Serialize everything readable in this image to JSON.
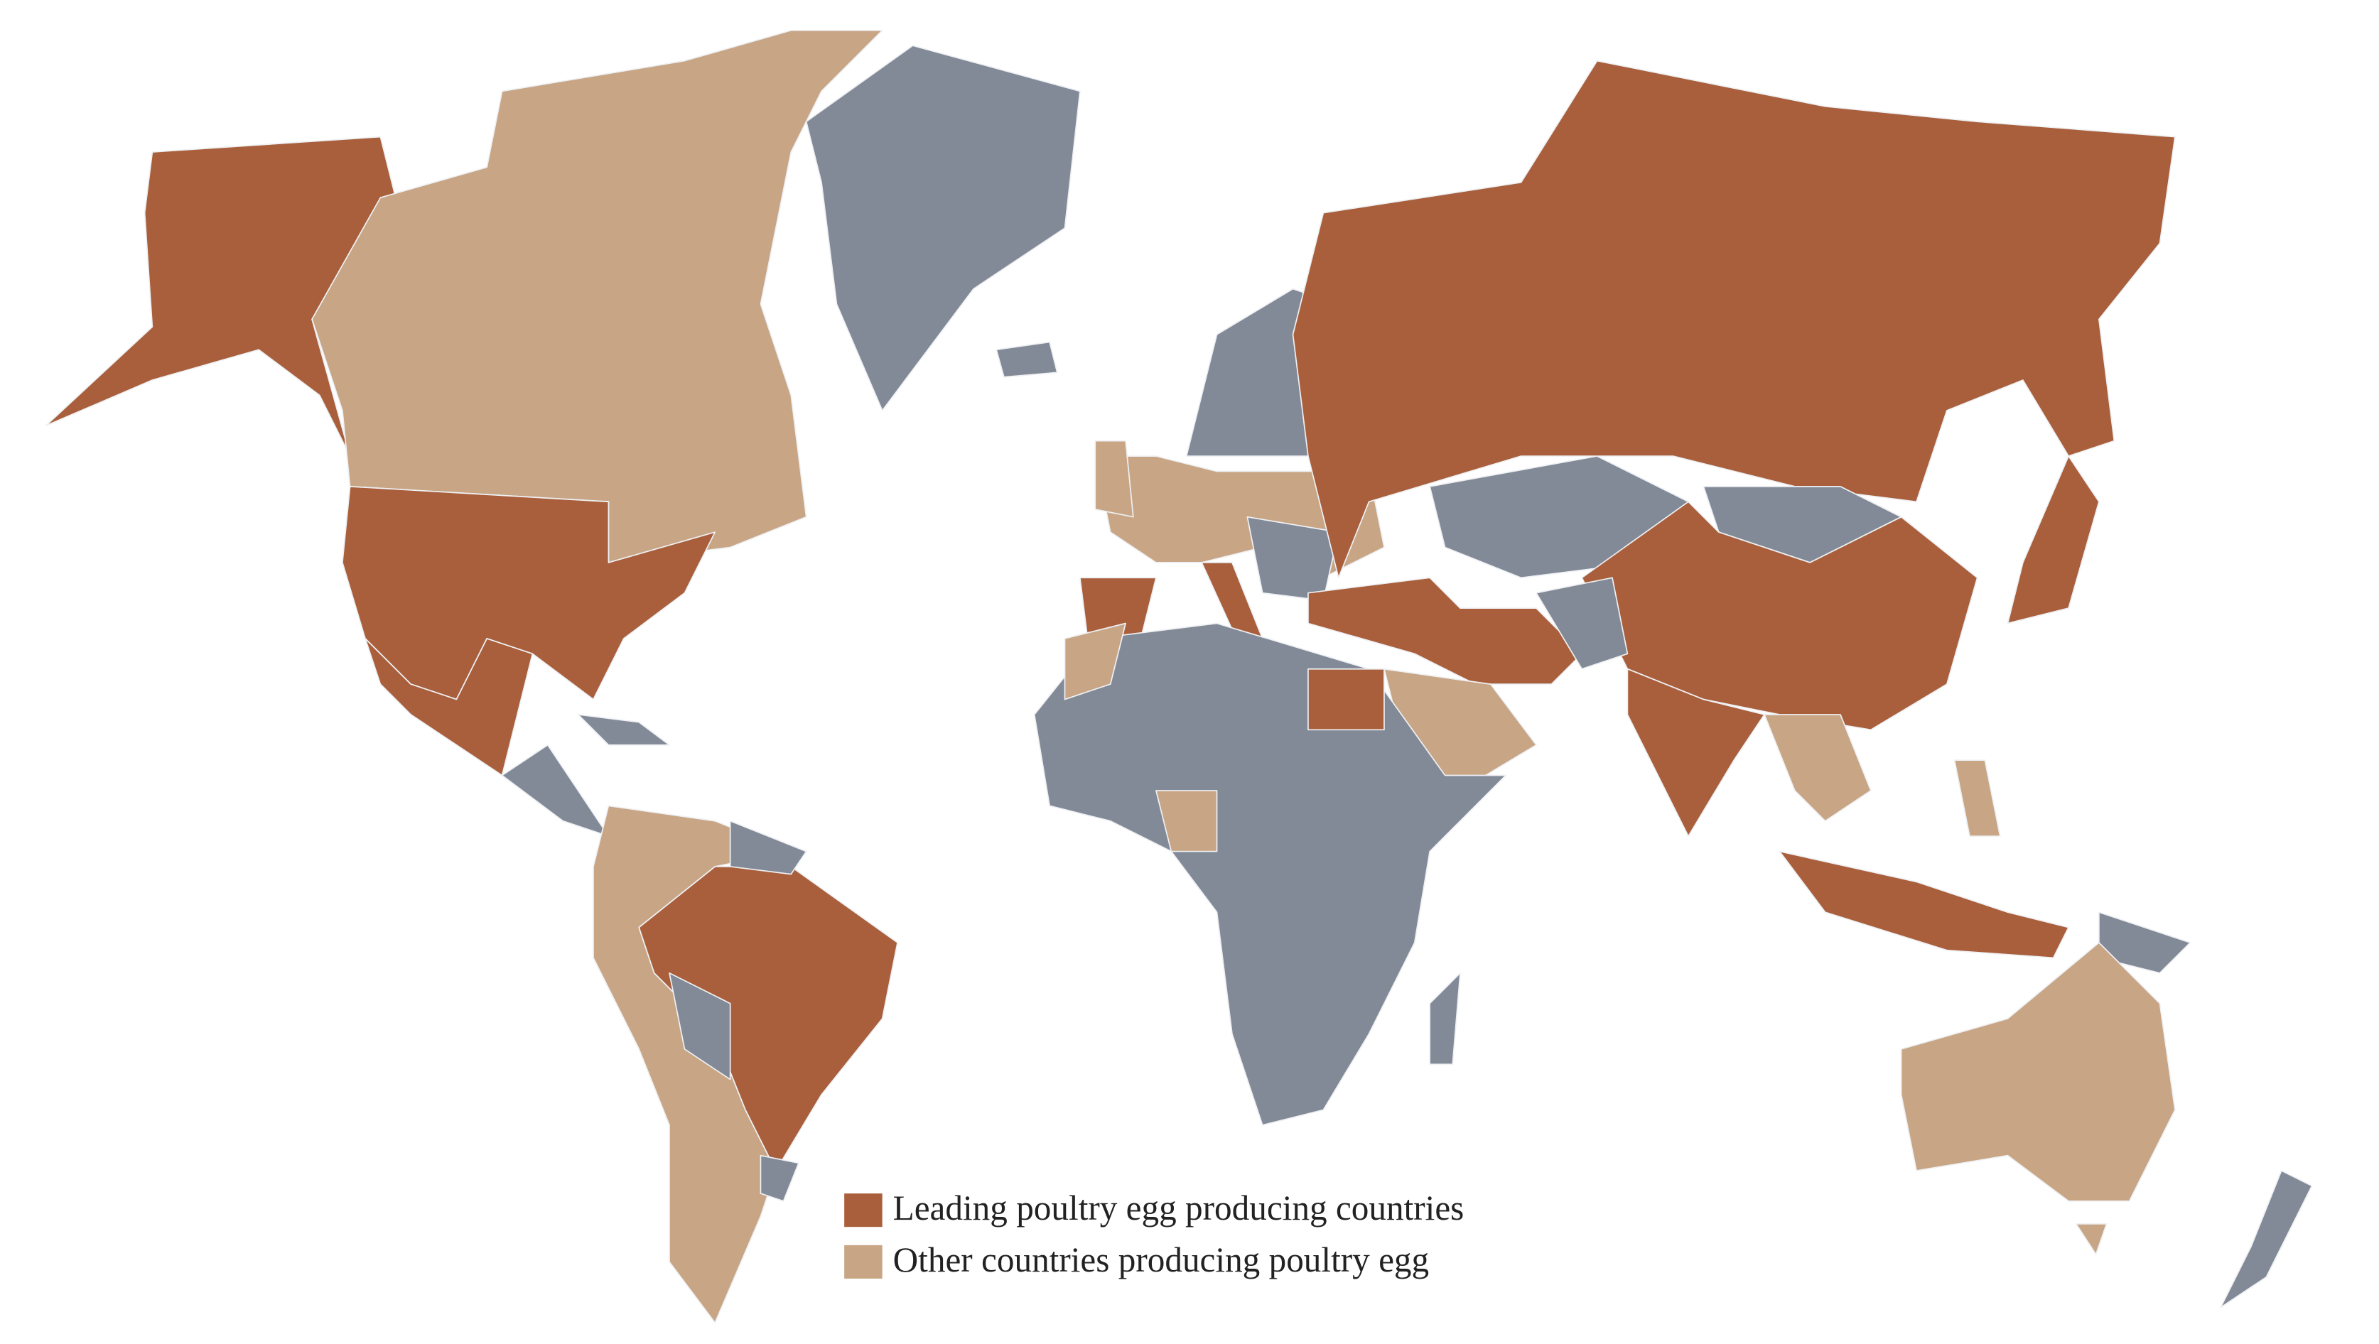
{
  "legend": {
    "items": [
      {
        "label": "Leading poultry egg producing countries",
        "color": "#a95f3c"
      },
      {
        "label": "Other countries producing poultry egg",
        "color": "#c8a585"
      }
    ]
  }
}
